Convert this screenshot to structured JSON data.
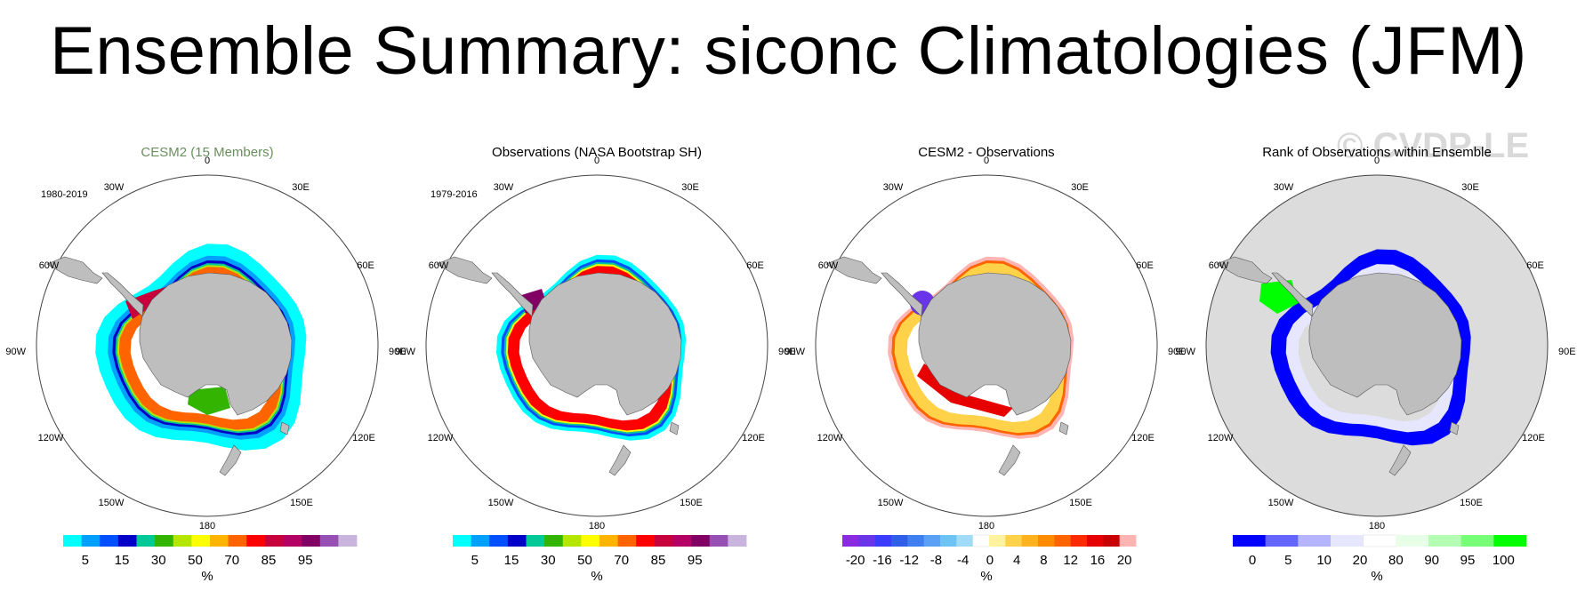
{
  "title": "Ensemble Summary: siconc Climatologies (JFM)",
  "watermark": "© CVDP-LE",
  "longitude_labels": [
    "0",
    "30E",
    "60E",
    "90E",
    "120E",
    "150E",
    "180",
    "150W",
    "120W",
    "90W",
    "60W",
    "30W"
  ],
  "panels": [
    {
      "title": "CESM2 (15 Members)",
      "title_color": "#6a8f5f",
      "period": "1980-2019",
      "colorbar": {
        "colors": [
          "#00ffff",
          "#00a0ff",
          "#0050ff",
          "#0000c8",
          "#00c896",
          "#32b400",
          "#b4e600",
          "#ffff00",
          "#ffb400",
          "#ff6400",
          "#ff0000",
          "#c8003c",
          "#b40064",
          "#820064",
          "#9650b4",
          "#c8b4dc"
        ],
        "labels": [
          "5",
          "15",
          "30",
          "50",
          "70",
          "85",
          "95"
        ],
        "unit": "%"
      }
    },
    {
      "title": "Observations (NASA Bootstrap SH)",
      "title_color": "#000000",
      "period": "1979-2016",
      "colorbar": {
        "colors": [
          "#00ffff",
          "#00a0ff",
          "#0050ff",
          "#0000c8",
          "#00c896",
          "#32b400",
          "#b4e600",
          "#ffff00",
          "#ffb400",
          "#ff6400",
          "#ff0000",
          "#c8003c",
          "#b40064",
          "#820064",
          "#9650b4",
          "#c8b4dc"
        ],
        "labels": [
          "5",
          "15",
          "30",
          "50",
          "70",
          "85",
          "95"
        ],
        "unit": "%"
      }
    },
    {
      "title": "CESM2 - Observations",
      "title_color": "#000000",
      "period": "",
      "colorbar": {
        "colors": [
          "#8a2be2",
          "#6a35e8",
          "#3c3cff",
          "#2f5fe8",
          "#3f7ff0",
          "#5aa0f5",
          "#6ec3f5",
          "#a0dcf8",
          "#ffffff",
          "#fff3a0",
          "#ffd24a",
          "#ffb21e",
          "#ff8c00",
          "#ff6400",
          "#ff2a00",
          "#e60000",
          "#c80000",
          "#ffb4b4"
        ],
        "labels": [
          "-20",
          "-16",
          "-12",
          "-8",
          "-4",
          "0",
          "4",
          "8",
          "12",
          "16",
          "20"
        ],
        "unit": "%"
      }
    },
    {
      "title": "Rank of Observations within Ensemble",
      "title_color": "#000000",
      "period": "",
      "colorbar": {
        "colors": [
          "#0000ff",
          "#6464ff",
          "#b4b4ff",
          "#e6e6ff",
          "#ffffff",
          "#e6ffe6",
          "#b4ffb4",
          "#78ff78",
          "#00ff00"
        ],
        "labels": [
          "0",
          "5",
          "10",
          "20",
          "80",
          "90",
          "95",
          "100"
        ],
        "unit": "%"
      }
    }
  ]
}
